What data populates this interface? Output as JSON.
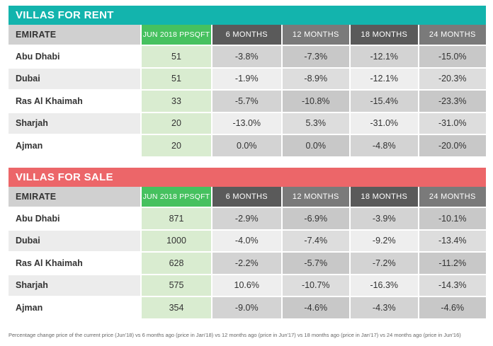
{
  "rent": {
    "title": "VILLAS FOR RENT",
    "headers": [
      "EMIRATE",
      "JUN 2018 PPSQFT",
      "6 MONTHS",
      "12 MONTHS",
      "18 MONTHS",
      "24 MONTHS"
    ],
    "rows": [
      {
        "emirate": "Abu Dhabi",
        "price": "51",
        "m6": "-3.8%",
        "m12": "-7.3%",
        "m18": "-12.1%",
        "m24": "-15.0%"
      },
      {
        "emirate": "Dubai",
        "price": "51",
        "m6": "-1.9%",
        "m12": "-8.9%",
        "m18": "-12.1%",
        "m24": "-20.3%"
      },
      {
        "emirate": "Ras Al Khaimah",
        "price": "33",
        "m6": "-5.7%",
        "m12": "-10.8%",
        "m18": "-15.4%",
        "m24": "-23.3%"
      },
      {
        "emirate": "Sharjah",
        "price": "20",
        "m6": "-13.0%",
        "m12": "5.3%",
        "m18": "-31.0%",
        "m24": "-31.0%"
      },
      {
        "emirate": "Ajman",
        "price": "20",
        "m6": "0.0%",
        "m12": "0.0%",
        "m18": "-4.8%",
        "m24": "-20.0%"
      }
    ]
  },
  "sale": {
    "title": "VILLAS FOR SALE",
    "headers": [
      "EMIRATE",
      "JUN 2018 PPSQFT",
      "6 MONTHS",
      "12 MONTHS",
      "18 MONTHS",
      "24 MONTHS"
    ],
    "rows": [
      {
        "emirate": "Abu Dhabi",
        "price": "871",
        "m6": "-2.9%",
        "m12": "-6.9%",
        "m18": "-3.9%",
        "m24": "-10.1%"
      },
      {
        "emirate": "Dubai",
        "price": "1000",
        "m6": "-4.0%",
        "m12": "-7.4%",
        "m18": "-9.2%",
        "m24": "-13.4%"
      },
      {
        "emirate": "Ras Al Khaimah",
        "price": "628",
        "m6": "-2.2%",
        "m12": "-5.7%",
        "m18": "-7.2%",
        "m24": "-11.2%"
      },
      {
        "emirate": "Sharjah",
        "price": "575",
        "m6": "10.6%",
        "m12": "-10.7%",
        "m18": "-16.3%",
        "m24": "-14.3%"
      },
      {
        "emirate": "Ajman",
        "price": "354",
        "m6": "-9.0%",
        "m12": "-4.6%",
        "m18": "-4.3%",
        "m24": "-4.6%"
      }
    ]
  },
  "footnote": "Percentage change price of the current price (Jun'18) vs 6 months ago (price in Jan'18) vs 12 months ago (price in Jun'17) vs 18 months ago (price in Jan'17) vs 24 months ago (price in Jun'16)",
  "colors": {
    "rent_banner": "#13b4ad",
    "sale_banner": "#ec6669",
    "price_header": "#46c15f",
    "price_cell": "#d9ecd0",
    "month_header_dark": "#5a5a5a",
    "month_header_light": "#7a7a7a"
  }
}
